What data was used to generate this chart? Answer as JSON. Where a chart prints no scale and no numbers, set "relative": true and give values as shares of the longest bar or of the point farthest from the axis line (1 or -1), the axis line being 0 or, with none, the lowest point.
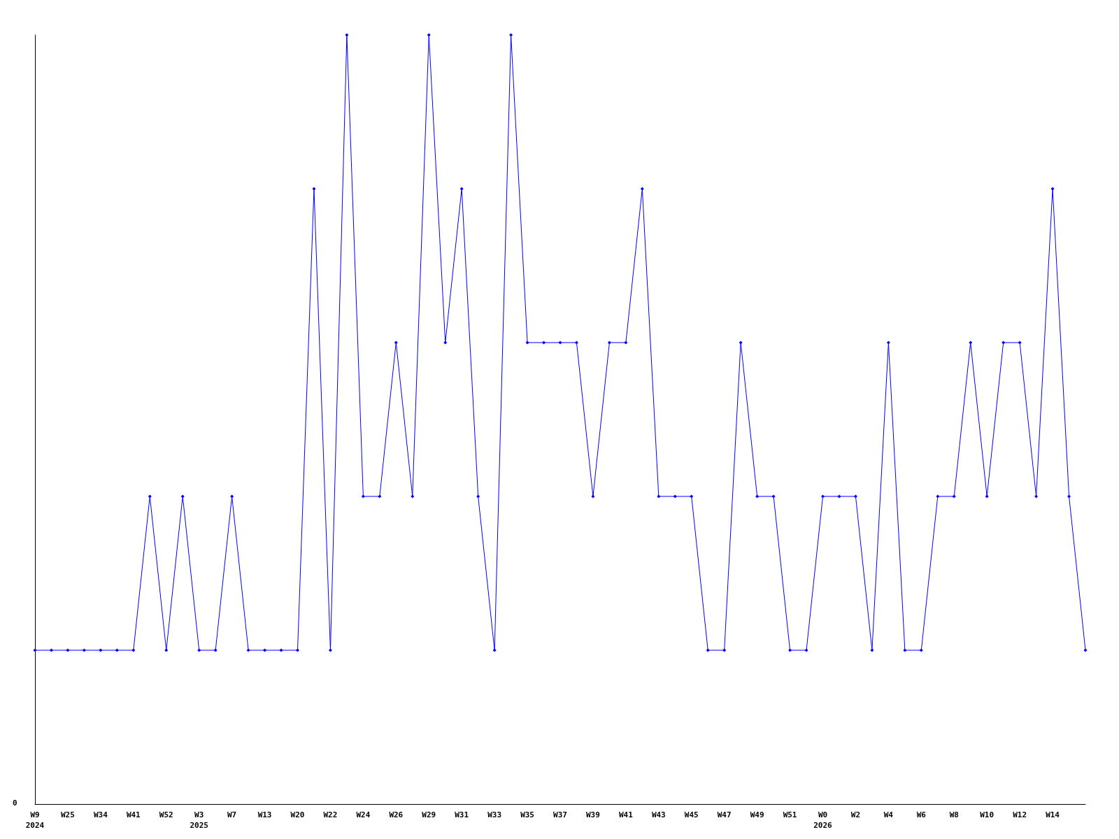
{
  "chart_data": {
    "type": "line",
    "relative": true,
    "marker": "diamond",
    "line_style": "solid",
    "grid": false,
    "annotations": [
      "0"
    ],
    "categories": [
      "W9\n2024",
      null,
      "W25",
      null,
      "W34",
      null,
      "W41",
      null,
      "W52",
      null,
      "W3\n2025",
      null,
      "W7",
      null,
      "W13",
      null,
      "W20",
      null,
      "W22",
      null,
      "W24",
      null,
      "W26",
      null,
      "W29",
      null,
      "W31",
      null,
      "W33",
      null,
      "W35",
      null,
      "W37",
      null,
      "W39",
      null,
      "W41",
      null,
      "W43",
      null,
      "W45",
      null,
      "W47",
      null,
      "W49",
      null,
      "W51",
      null,
      "W0\n2026",
      null,
      "W2",
      null,
      "W4",
      null,
      "W6",
      null,
      "W8",
      null,
      "W10",
      null,
      "W12",
      null,
      "W14",
      null,
      null
    ],
    "series": [
      {
        "color": "#0000ff",
        "values": [
          0.2,
          0.2,
          0.2,
          0.2,
          0.2,
          0.2,
          0.2,
          0.4,
          0.2,
          0.4,
          0.2,
          0.2,
          0.4,
          0.2,
          0.2,
          0.2,
          0.2,
          0.8,
          0.2,
          1,
          0.4,
          0.4,
          0.6,
          0.4,
          1,
          0.6,
          0.8,
          0.4,
          0.2,
          1,
          0.6,
          0.6,
          0.6,
          0.6,
          0.4,
          0.6,
          0.6,
          0.8,
          0.4,
          0.4,
          0.4,
          0.2,
          0.2,
          0.6,
          0.4,
          0.4,
          0.2,
          0.2,
          0.4,
          0.4,
          0.4,
          0.2,
          0.6,
          0.2,
          0.2,
          0.4,
          0.4,
          0.6,
          0.4,
          0.6,
          0.6,
          0.4,
          0.8,
          0.4,
          0.2
        ]
      }
    ]
  }
}
